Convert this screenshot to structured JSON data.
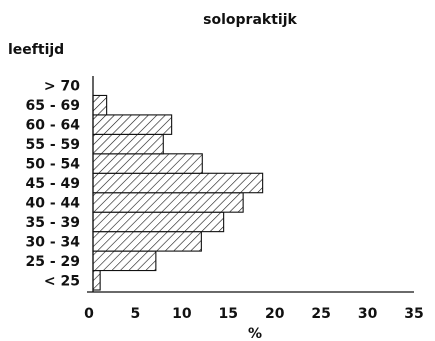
{
  "chart_data": {
    "type": "bar",
    "orientation": "horizontal",
    "title": "solopraktijk",
    "ylabel": "leeftijd",
    "xlabel": "%",
    "categories": [
      "< 25",
      "25 - 29",
      "30 - 34",
      "35 - 39",
      "40 - 44",
      "45 - 49",
      "50 - 54",
      "55 - 59",
      "60 - 64",
      "65 - 69",
      "> 70"
    ],
    "values": [
      1.2,
      7.2,
      12.1,
      14.5,
      16.6,
      18.7,
      12.2,
      8.0,
      8.9,
      1.9,
      0
    ],
    "xlim": [
      0,
      35
    ],
    "xticks": [
      "0",
      "5",
      "10",
      "15",
      "20",
      "25",
      "30",
      "35"
    ],
    "grid": false,
    "bar_fill": "diagonal-hatch"
  }
}
